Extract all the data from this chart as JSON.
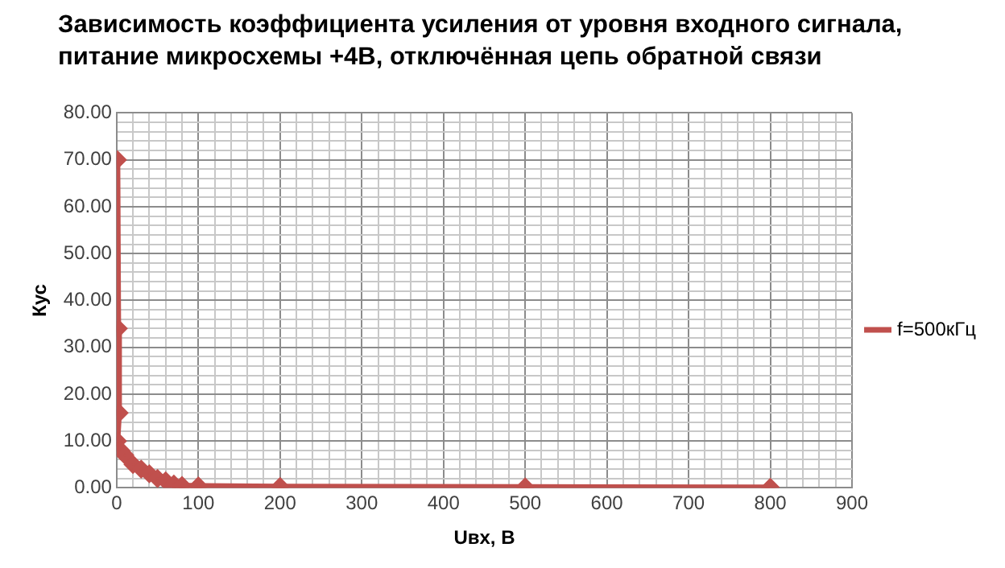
{
  "chart_data": {
    "type": "line",
    "title": "Зависимость коэффициента усиления от уровня входного сигнала, питание микросхемы +4В, отключённая цепь обратной связи",
    "xlabel": "Uвх, В",
    "ylabel": "Кус",
    "x": [
      1,
      2,
      3,
      1,
      5,
      10,
      20,
      30,
      40,
      50,
      60,
      70,
      80,
      100,
      200,
      500,
      800
    ],
    "series": [
      {
        "name": "f=500кГц",
        "color": "#c0504d",
        "values": [
          70,
          34,
          16,
          10,
          8,
          7,
          5,
          4,
          3,
          2,
          1.5,
          0.8,
          0.5,
          0.4,
          0.3,
          0.2,
          0.1
        ]
      }
    ],
    "xlim": [
      0,
      900
    ],
    "xticks": [
      0,
      {
        "value": 20,
        "label": null
      },
      {
        "value": 40,
        "label": null
      },
      {
        "value": 60,
        "label": null
      },
      {
        "value": 80,
        "label": null
      },
      100,
      {
        "value": 120,
        "label": null
      },
      {
        "value": 140,
        "label": null
      },
      {
        "value": 160,
        "label": null
      },
      {
        "value": 180,
        "label": null
      },
      200,
      {
        "value": 220,
        "label": null
      },
      {
        "value": 240,
        "label": null
      },
      {
        "value": 260,
        "label": null
      },
      {
        "value": 280,
        "label": null
      },
      300,
      {
        "value": 320,
        "label": null
      },
      {
        "value": 340,
        "label": null
      },
      {
        "value": 360,
        "label": null
      },
      {
        "value": 380,
        "label": null
      },
      400,
      {
        "value": 420,
        "label": null
      },
      {
        "value": 440,
        "label": null
      },
      {
        "value": 460,
        "label": null
      },
      {
        "value": 480,
        "label": null
      },
      500,
      {
        "value": 520,
        "label": null
      },
      {
        "value": 540,
        "label": null
      },
      {
        "value": 560,
        "label": null
      },
      {
        "value": 580,
        "label": null
      },
      600,
      {
        "value": 620,
        "label": null
      },
      {
        "value": 640,
        "label": null
      },
      {
        "value": 660,
        "label": null
      },
      {
        "value": 680,
        "label": null
      },
      700,
      {
        "value": 720,
        "label": null
      },
      {
        "value": 740,
        "label": null
      },
      {
        "value": 760,
        "label": null
      },
      {
        "value": 780,
        "label": null
      },
      800,
      {
        "value": 820,
        "label": null
      },
      {
        "value": 840,
        "label": null
      },
      {
        "value": 860,
        "label": null
      },
      {
        "value": 880,
        "label": null
      },
      900
    ],
    "ylim": [
      0,
      80
    ],
    "yticks": [
      {
        "value": 0,
        "label": "0.00"
      },
      {
        "value": 2,
        "label": null
      },
      {
        "value": 4,
        "label": null
      },
      {
        "value": 6,
        "label": null
      },
      {
        "value": 8,
        "label": null
      },
      {
        "value": 10,
        "label": "10.00"
      },
      {
        "value": 12,
        "label": null
      },
      {
        "value": 14,
        "label": null
      },
      {
        "value": 16,
        "label": null
      },
      {
        "value": 18,
        "label": null
      },
      {
        "value": 20,
        "label": "20.00"
      },
      {
        "value": 22,
        "label": null
      },
      {
        "value": 24,
        "label": null
      },
      {
        "value": 26,
        "label": null
      },
      {
        "value": 28,
        "label": null
      },
      {
        "value": 30,
        "label": "30.00"
      },
      {
        "value": 32,
        "label": null
      },
      {
        "value": 34,
        "label": null
      },
      {
        "value": 36,
        "label": null
      },
      {
        "value": 38,
        "label": null
      },
      {
        "value": 40,
        "label": "40.00"
      },
      {
        "value": 42,
        "label": null
      },
      {
        "value": 44,
        "label": null
      },
      {
        "value": 46,
        "label": null
      },
      {
        "value": 48,
        "label": null
      },
      {
        "value": 50,
        "label": "50.00"
      },
      {
        "value": 52,
        "label": null
      },
      {
        "value": 54,
        "label": null
      },
      {
        "value": 56,
        "label": null
      },
      {
        "value": 58,
        "label": null
      },
      {
        "value": 60,
        "label": "60.00"
      },
      {
        "value": 62,
        "label": null
      },
      {
        "value": 64,
        "label": null
      },
      {
        "value": 66,
        "label": null
      },
      {
        "value": 68,
        "label": null
      },
      {
        "value": 70,
        "label": "70.00"
      },
      {
        "value": 72,
        "label": null
      },
      {
        "value": 74,
        "label": null
      },
      {
        "value": 76,
        "label": null
      },
      {
        "value": 78,
        "label": null
      },
      {
        "value": 80,
        "label": "80.00"
      }
    ],
    "grid": true,
    "legend": "right",
    "marker": "diamond",
    "line_style": "solid"
  }
}
